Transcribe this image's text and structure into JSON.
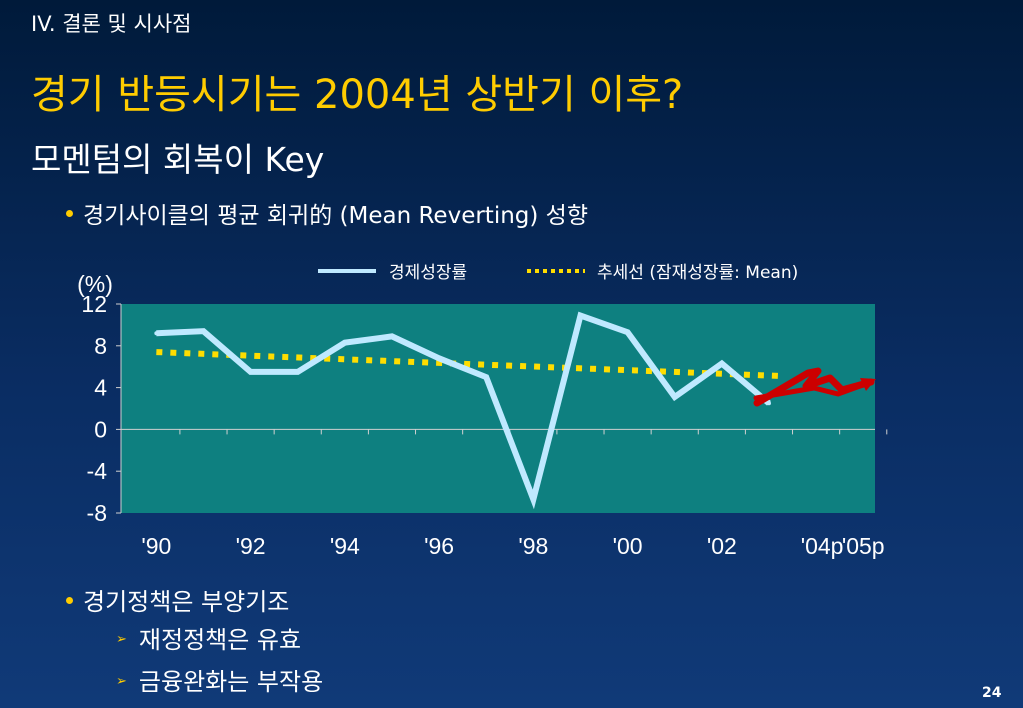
{
  "header": {
    "section": "IV. 결론 및 시사점",
    "title": "경기 반등시기는 2004년 상반기 이후?",
    "subtitle": "모멘텀의 회복이 Key"
  },
  "bullets": [
    {
      "text": "경기사이클의 평균 회귀的 (Mean Reverting) 성향"
    },
    {
      "text": "경기정책은 부양기조",
      "sub": [
        "재정정책은 유효",
        "금융완화는 부작용"
      ]
    }
  ],
  "page_number": "24",
  "chart_data": {
    "type": "line",
    "ylabel": "(%)",
    "ylim": [
      -8,
      12
    ],
    "yticks": [
      "12",
      "8",
      "4",
      "0",
      "-4",
      "-8"
    ],
    "x_labels": [
      "'90",
      "'92",
      "'94",
      "'96",
      "'98",
      "'00",
      "'02",
      "'04p",
      "'05p"
    ],
    "x": [
      1990,
      1991,
      1992,
      1993,
      1994,
      1995,
      1996,
      1997,
      1998,
      1999,
      2000,
      2001,
      2002,
      2003
    ],
    "series": [
      {
        "name": "경제성장률",
        "color": "#bfe9ff",
        "style": "solid",
        "values": [
          9.2,
          9.4,
          5.5,
          5.5,
          8.3,
          8.9,
          6.8,
          5.0,
          -6.7,
          10.9,
          9.3,
          3.1,
          6.3,
          2.5
        ]
      },
      {
        "name": "추세선 (잠재성장률: Mean)",
        "color": "#ffdd00",
        "style": "dotted",
        "x": [
          1990,
          2003.3
        ],
        "values": [
          7.4,
          5.1
        ]
      }
    ],
    "annotation": {
      "type": "hand-drawn-arrow",
      "color": "#cc0000"
    },
    "plot_background": "#0e8080",
    "grid": false,
    "legend": "top"
  }
}
